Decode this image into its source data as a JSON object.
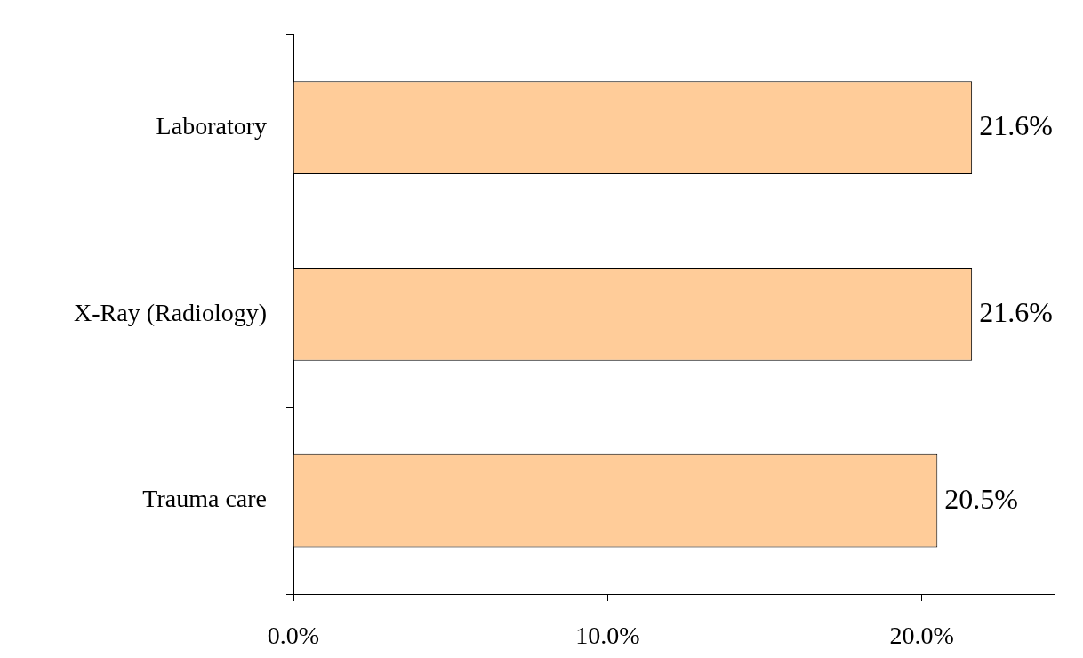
{
  "chart_data": {
    "type": "bar",
    "orientation": "horizontal",
    "categories": [
      "Laboratory",
      "X-Ray (Radiology)",
      "Trauma care"
    ],
    "values": [
      21.6,
      21.6,
      20.5
    ],
    "color": "#ffcc99",
    "value_labels": [
      "21.6%",
      "21.6%",
      "20.5%"
    ],
    "xlim": [
      0,
      24.2
    ],
    "xticks": [
      {
        "value": 0,
        "label": "0.0%"
      },
      {
        "value": 10,
        "label": "10.0%"
      },
      {
        "value": 20,
        "label": "20.0%"
      }
    ],
    "grid": false,
    "legend": false
  }
}
